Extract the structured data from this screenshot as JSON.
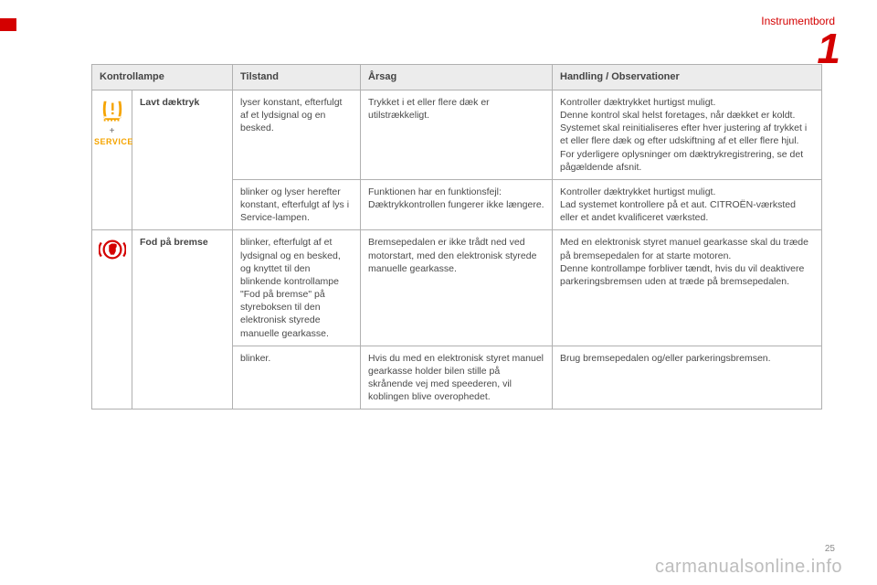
{
  "header": {
    "section": "Instrumentbord",
    "chapter": "1"
  },
  "table": {
    "columns": {
      "lamp": "Kontrollampe",
      "state": "Tilstand",
      "cause": "Årsag",
      "action": "Handling / Observationer"
    },
    "rows": {
      "tyre": {
        "label": "Lavt dæktryk",
        "iconName": "tpms-icon",
        "secondaryIconLabel": "SERVICE",
        "r1": {
          "state": "lyser konstant, efterfulgt af et lydsignal og en besked.",
          "cause": "Trykket i et eller flere dæk er utilstrækkeligt.",
          "action": "Kontroller dæktrykket hurtigst muligt.\nDenne kontrol skal helst foretages, når dækket er koldt.\nSystemet skal reinitialiseres efter hver justering af trykket i et eller flere dæk og efter udskiftning af et eller flere hjul.\nFor yderligere oplysninger om dæktrykregistrering, se det pågældende afsnit."
        },
        "r2": {
          "state": "blinker og lyser herefter konstant, efterfulgt af lys i Service-lampen.",
          "cause": "Funktionen har en funktionsfejl: Dæktrykkontrollen fungerer ikke længere.",
          "action": "Kontroller dæktrykket hurtigst muligt.\nLad systemet kontrollere på et aut. CITROËN-værksted eller et andet kvalificeret værksted."
        }
      },
      "brake": {
        "label": "Fod på bremse",
        "iconName": "foot-on-brake-icon",
        "r1": {
          "state": "blinker, efterfulgt af et lydsignal og en besked, og knyttet til den blinkende kontrollampe \"Fod på bremse\" på styreboksen til den elektronisk styrede manuelle gearkasse.",
          "cause": "Bremsepedalen er ikke trådt ned ved motorstart, med den elektronisk styrede manuelle gearkasse.",
          "action": "Med en elektronisk styret manuel gearkasse skal du træde på bremsepedalen for at starte motoren.\nDenne kontrollampe forbliver tændt, hvis du vil deaktivere parkeringsbremsen uden at træde på bremsepedalen."
        },
        "r2": {
          "state": "blinker.",
          "cause": "Hvis du med en elektronisk styret manuel gearkasse holder bilen stille på skrånende vej med speederen, vil koblingen blive overophedet.",
          "action": "Brug bremsepedalen og/eller parkeringsbremsen."
        }
      }
    }
  },
  "footer": {
    "pageNumber": "25",
    "url": "carmanualsonline.info"
  },
  "style": {
    "accent": "#d40000",
    "iconOrange": "#f5a400",
    "iconRed": "#d40000"
  }
}
